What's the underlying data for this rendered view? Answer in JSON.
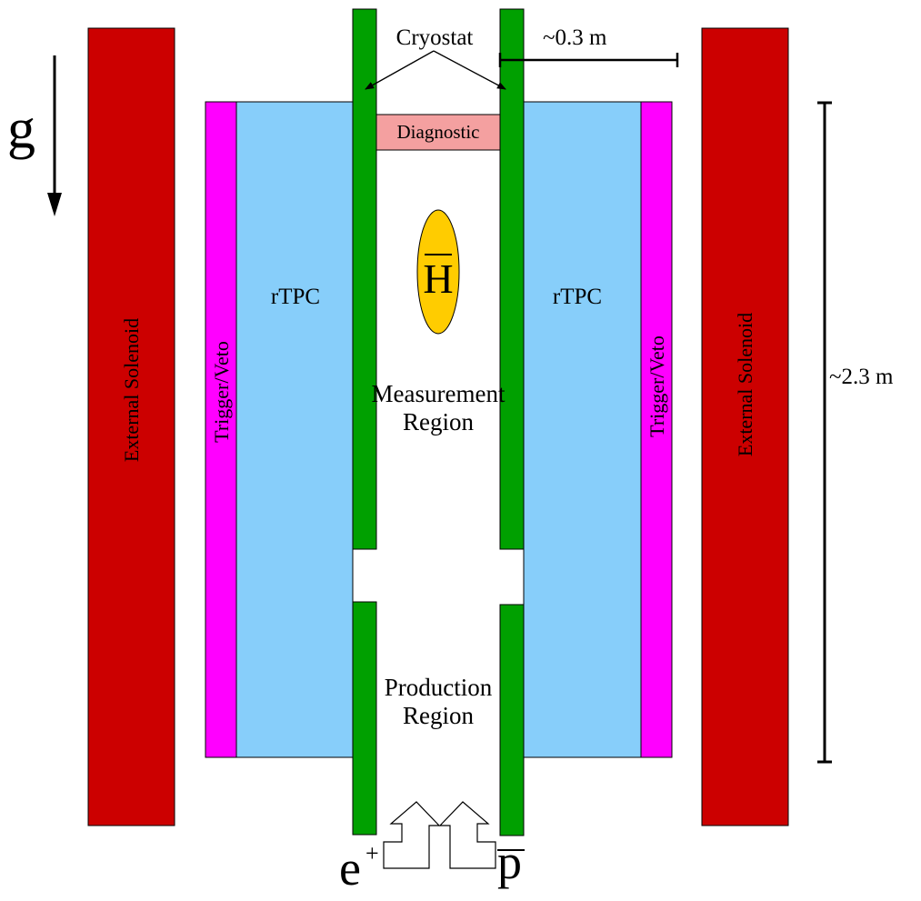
{
  "labels": {
    "gravity": "g",
    "cryostat": "Cryostat",
    "width_dim": "~0.3 m",
    "height_dim": "~2.3 m",
    "diagnostic": "Diagnostic",
    "rtpc_left": "rTPC",
    "rtpc_right": "rTPC",
    "trigger_left": "Trigger/Veto",
    "trigger_right": "Trigger/Veto",
    "solenoid_left": "External Solenoid",
    "solenoid_right": "External Solenoid",
    "antihydrogen": "H",
    "measurement_line1": "Measurement",
    "measurement_line2": "Region",
    "production_line1": "Production",
    "production_line2": "Region",
    "positron_base": "e",
    "positron_sup": "+",
    "antiproton": "p"
  },
  "colors": {
    "solenoid": "#cc0000",
    "trigger": "#ff00ff",
    "rtpc": "#87cefa",
    "cryostat": "#00a000",
    "diagnostic": "#f4a0a0",
    "antihydrogen": "#ffcc00"
  }
}
